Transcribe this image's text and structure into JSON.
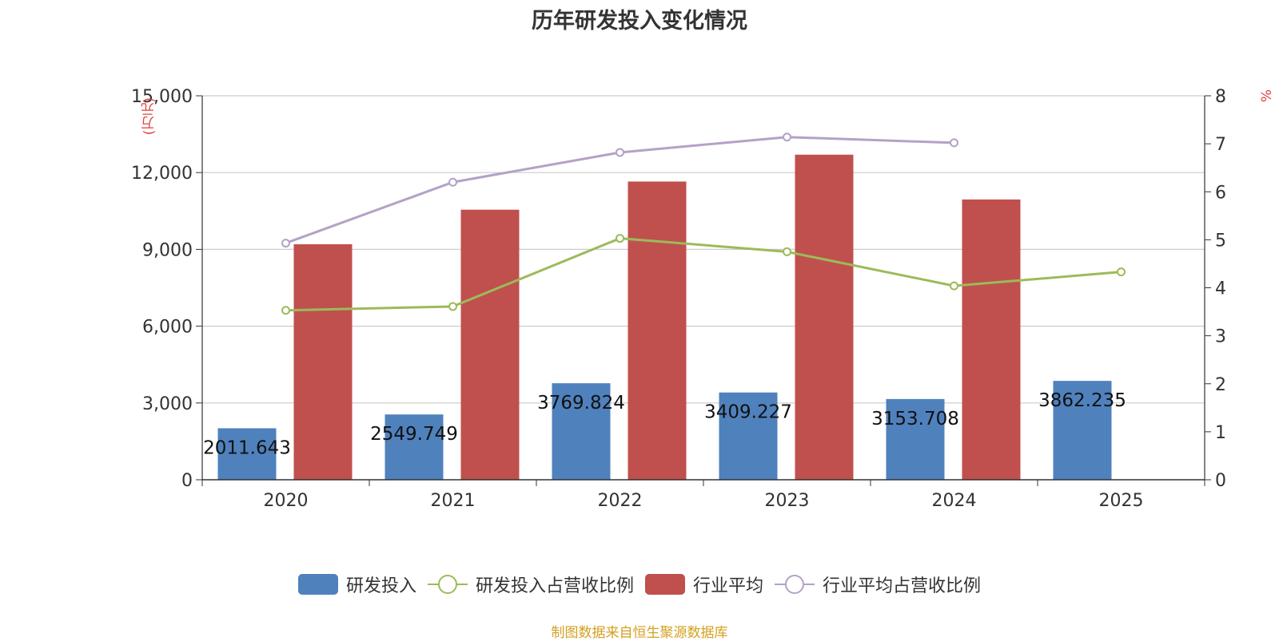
{
  "chart_data": {
    "type": "bar",
    "title": "历年研发投入变化情况",
    "categories": [
      "2020",
      "2021",
      "2022",
      "2023",
      "2024",
      "2025"
    ],
    "left_axis": {
      "unit_label": "(万元)",
      "range": [
        0,
        15000
      ],
      "ticks": [
        "0",
        "3,000",
        "6,000",
        "9,000",
        "12,000",
        "15,000"
      ]
    },
    "right_axis": {
      "unit_label": "%",
      "range": [
        0,
        8
      ],
      "ticks": [
        "0",
        "1",
        "2",
        "3",
        "4",
        "5",
        "6",
        "7",
        "8"
      ]
    },
    "grid": true,
    "series": [
      {
        "name": "研发投入",
        "type": "bar",
        "axis": "left",
        "color": "#4f81bd",
        "values": [
          2011.643,
          2549.749,
          3769.824,
          3409.227,
          3153.708,
          3862.235
        ],
        "labels": [
          "2011.643",
          "2549.749",
          "3769.824",
          "3409.227",
          "3153.708",
          "3862.235"
        ]
      },
      {
        "name": "研发投入占营收比例",
        "type": "line",
        "axis": "right",
        "color": "#9bbb59",
        "values": [
          3.53,
          3.61,
          5.03,
          4.75,
          4.04,
          4.33
        ]
      },
      {
        "name": "行业平均",
        "type": "bar",
        "axis": "left",
        "color": "#c0504d",
        "values": [
          9200,
          10550,
          11650,
          12700,
          10950,
          null
        ]
      },
      {
        "name": "行业平均占营收比例",
        "type": "line",
        "axis": "right",
        "color": "#b3a2c7",
        "values": [
          4.93,
          6.2,
          6.82,
          7.14,
          7.02,
          null
        ]
      }
    ],
    "legend_position": "bottom"
  },
  "source_text": "制图数据来自恒生聚源数据库"
}
